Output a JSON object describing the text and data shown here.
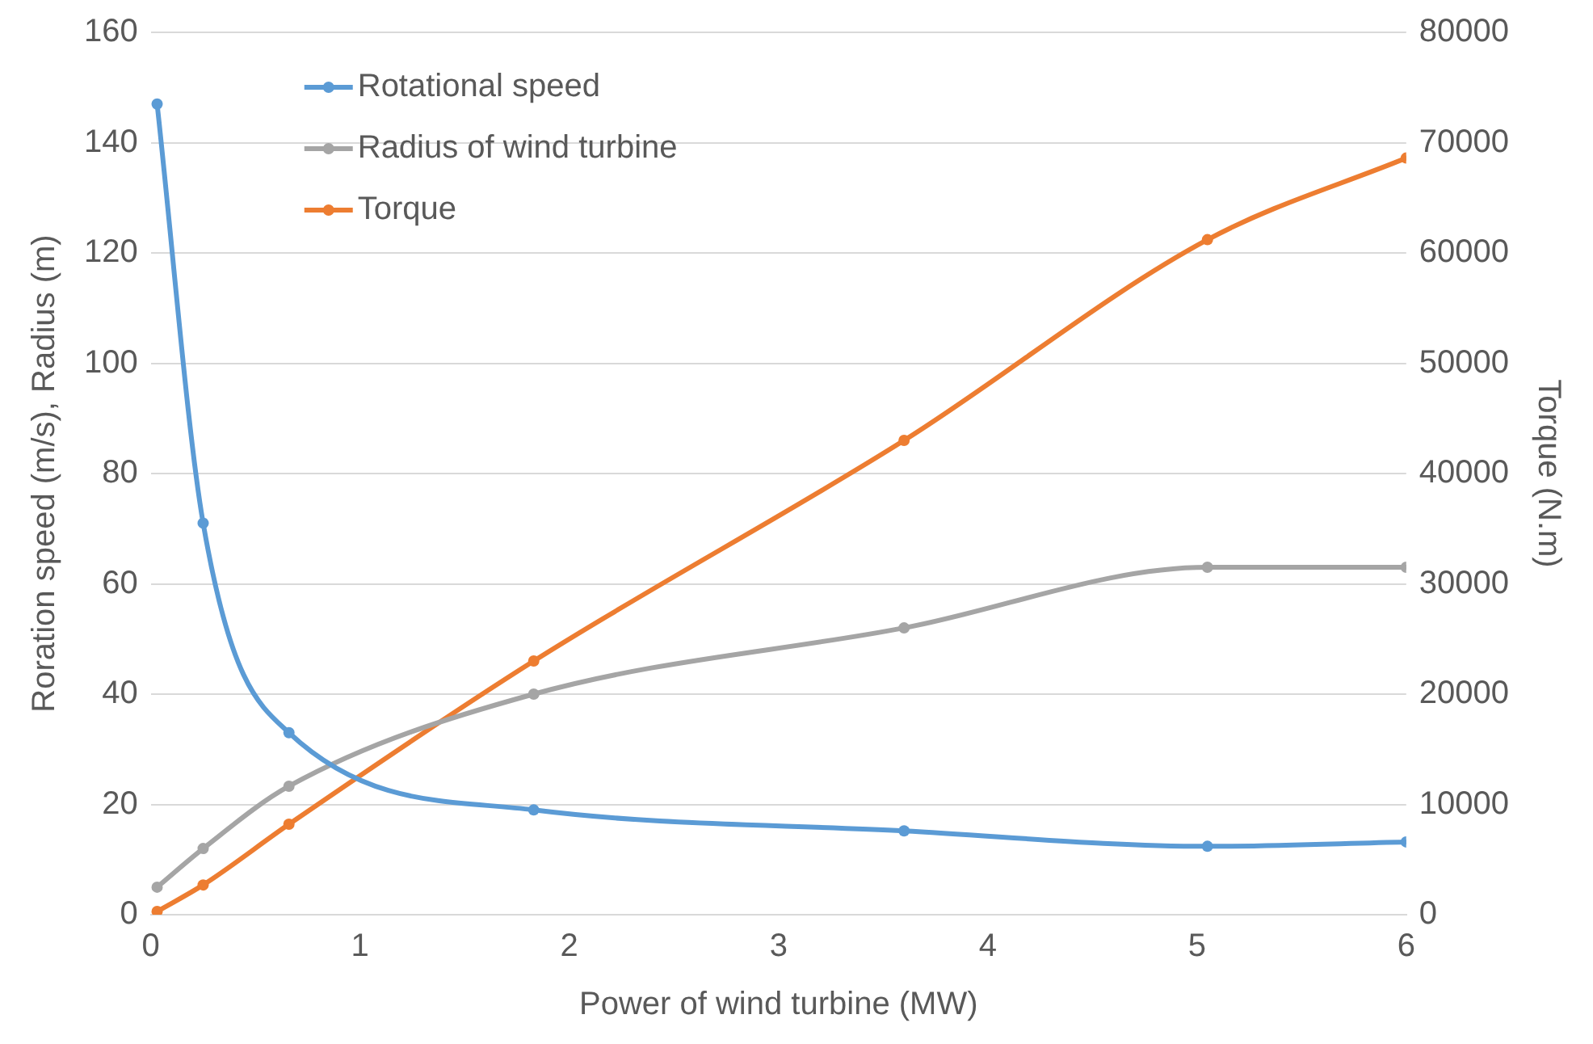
{
  "chart_data": {
    "type": "line",
    "xlabel": "Power of wind turbine (MW)",
    "ylabel": "Roration speed (m/s), Radius (m)",
    "y2label": "Torque (N.m)",
    "x": [
      0.03,
      0.25,
      0.66,
      1.83,
      3.6,
      5.05,
      6
    ],
    "series": [
      {
        "name": "Rotational speed",
        "color": "#5b9bd5",
        "values": [
          147,
          71,
          33,
          19,
          15.2,
          12.4,
          13.2
        ]
      },
      {
        "name": "Radius of wind turbine",
        "color": "#a5a5a5",
        "values": [
          5,
          12,
          23.3,
          40,
          52,
          63,
          63
        ]
      },
      {
        "name": "Torque",
        "color": "#ed7d31",
        "axis": "y2",
        "values": [
          300,
          2700,
          8200,
          23000,
          43000,
          61200,
          68600
        ]
      }
    ],
    "xlim": [
      0,
      6
    ],
    "xticks": [
      0,
      1,
      2,
      3,
      4,
      5,
      6
    ],
    "ylim": [
      0,
      160
    ],
    "yticks": [
      0,
      20,
      40,
      60,
      80,
      100,
      120,
      140,
      160
    ],
    "y2lim": [
      0,
      80000
    ],
    "y2ticks": [
      0,
      10000,
      20000,
      30000,
      40000,
      50000,
      60000,
      70000,
      80000
    ],
    "grid": "y",
    "legend": "top left",
    "marker": "circle",
    "line_style": "solid"
  }
}
